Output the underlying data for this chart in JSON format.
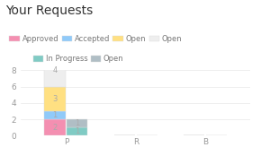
{
  "title": "Your Requests",
  "categories": [
    "P",
    "R",
    "B"
  ],
  "bar_width": 0.3,
  "series_left": [
    {
      "label": "Approved",
      "color": "#f48fb1",
      "values": [
        2,
        0,
        0
      ]
    },
    {
      "label": "Accepted",
      "color": "#90caf9",
      "values": [
        1,
        0,
        0
      ]
    },
    {
      "label": "Open",
      "color": "#ffe082",
      "values": [
        3,
        0,
        0
      ]
    },
    {
      "label": "Open",
      "color": "#eeeeee",
      "values": [
        4,
        0,
        0
      ]
    }
  ],
  "series_right": [
    {
      "label": "In Progress",
      "color": "#80cbc4",
      "values": [
        1,
        0,
        0
      ]
    },
    {
      "label": "Open",
      "color": "#b0bec5",
      "values": [
        1,
        0,
        0
      ]
    }
  ],
  "ylim": [
    0,
    8
  ],
  "yticks": [
    0,
    2,
    4,
    6,
    8
  ],
  "background_color": "#ffffff",
  "title_fontsize": 10,
  "legend_fontsize": 6.0,
  "tick_fontsize": 6.5,
  "label_fontsize": 6.0,
  "text_color": "#aaaaaa",
  "axis_color": "#cccccc",
  "title_color": "#333333"
}
